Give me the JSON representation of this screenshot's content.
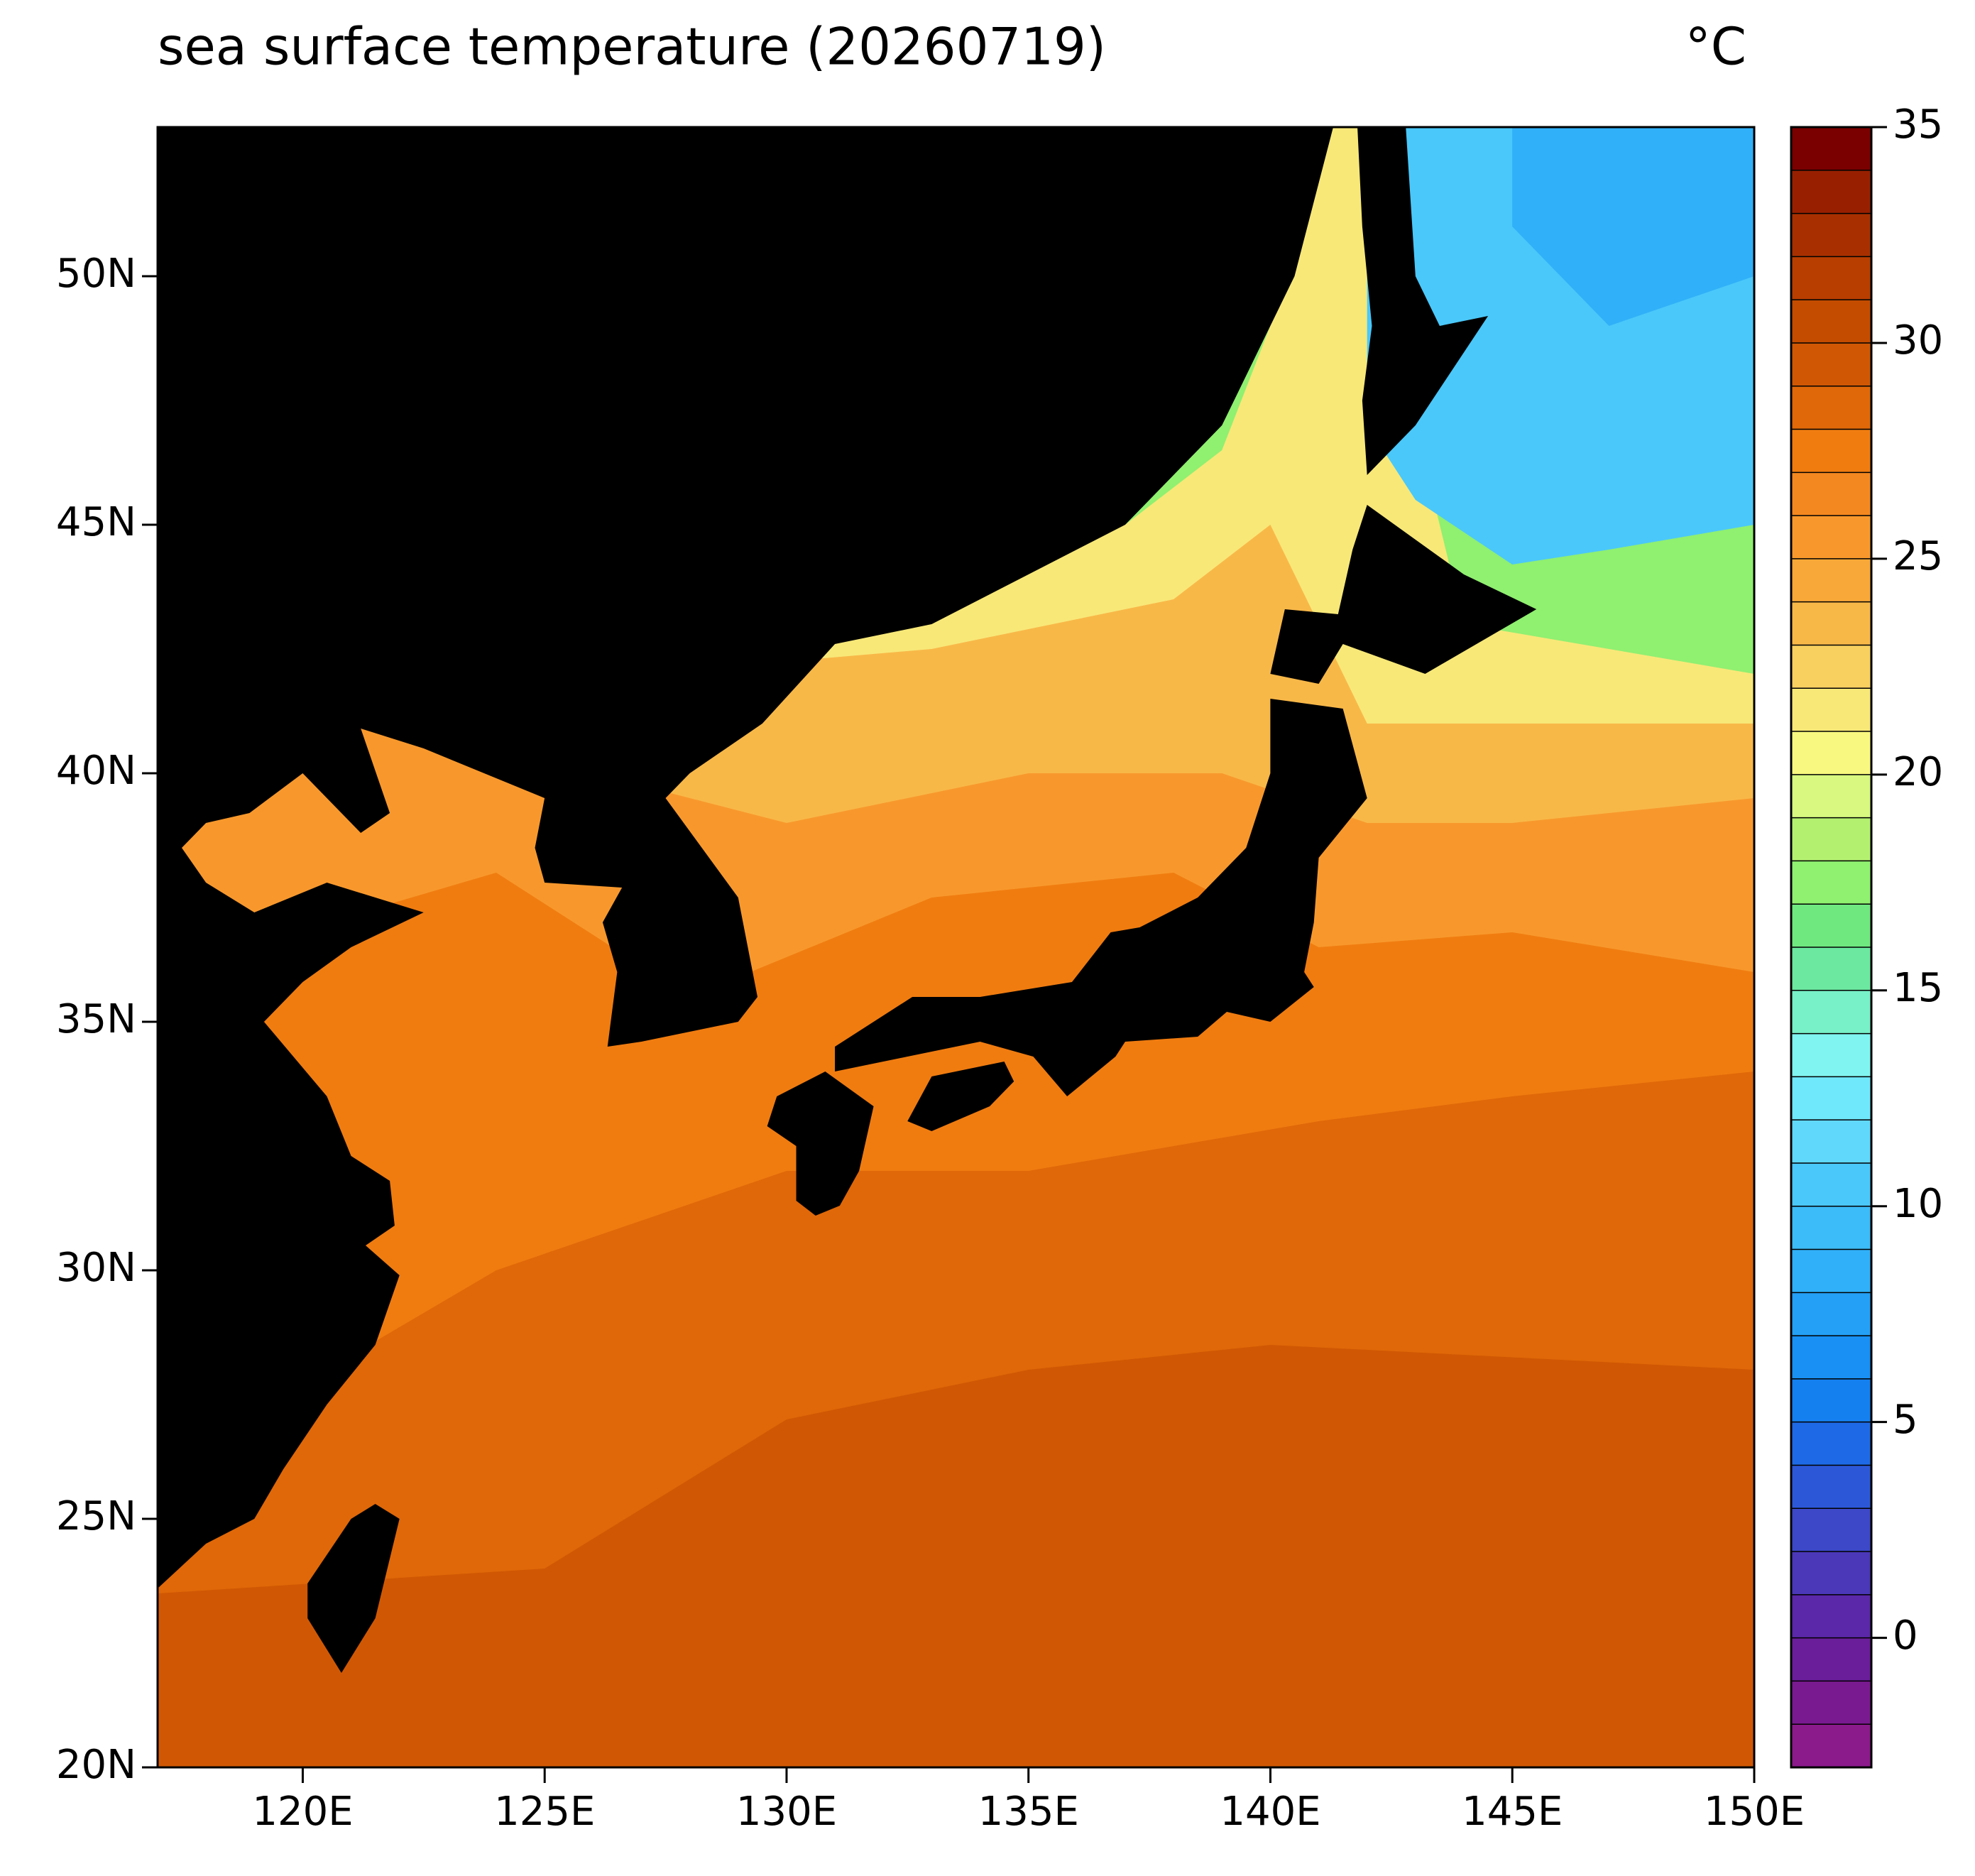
{
  "chart_data": {
    "type": "contourf",
    "title": "sea surface temperature (20260719)",
    "units": "°C",
    "xlim": [
      117,
      150
    ],
    "ylim": [
      20,
      53
    ],
    "xticks": [
      {
        "value": 120,
        "label": "120E"
      },
      {
        "value": 125,
        "label": "125E"
      },
      {
        "value": 130,
        "label": "130E"
      },
      {
        "value": 135,
        "label": "135E"
      },
      {
        "value": 140,
        "label": "140E"
      },
      {
        "value": 145,
        "label": "145E"
      },
      {
        "value": 150,
        "label": "150E"
      }
    ],
    "yticks": [
      {
        "value": 20,
        "label": "20N"
      },
      {
        "value": 25,
        "label": "25N"
      },
      {
        "value": 30,
        "label": "30N"
      },
      {
        "value": 35,
        "label": "35N"
      },
      {
        "value": 40,
        "label": "40N"
      },
      {
        "value": 45,
        "label": "45N"
      },
      {
        "value": 50,
        "label": "50N"
      }
    ],
    "colorbar": {
      "levels": [
        -3,
        -2,
        -1,
        0,
        1,
        2,
        3,
        4,
        5,
        6,
        7,
        8,
        9,
        10,
        11,
        12,
        13,
        14,
        15,
        16,
        17,
        18,
        19,
        20,
        21,
        22,
        23,
        24,
        25,
        26,
        27,
        28,
        29,
        30,
        31,
        32,
        33,
        34,
        35
      ],
      "colors": [
        "#8b1a8b",
        "#7a1a90",
        "#6a1e9a",
        "#5a28a8",
        "#4a38b8",
        "#3c48c8",
        "#2c58d8",
        "#1e6ae6",
        "#1480f0",
        "#1890f4",
        "#24a0f6",
        "#30b0f8",
        "#3cbcf8",
        "#4ac8fa",
        "#60d8fc",
        "#70e8fc",
        "#80f4f0",
        "#78f0c8",
        "#6ce8a0",
        "#70e880",
        "#90f070",
        "#b4f070",
        "#d8f880",
        "#f8f880",
        "#f8e878",
        "#f8d060",
        "#f8b848",
        "#f8a838",
        "#f8982c",
        "#f48820",
        "#f07c10",
        "#e06808",
        "#d05804",
        "#c44c00",
        "#b83e00",
        "#a83000",
        "#982000",
        "#7a0000"
      ],
      "ticks": [
        0,
        5,
        10,
        15,
        20,
        25,
        30,
        35
      ]
    }
  }
}
